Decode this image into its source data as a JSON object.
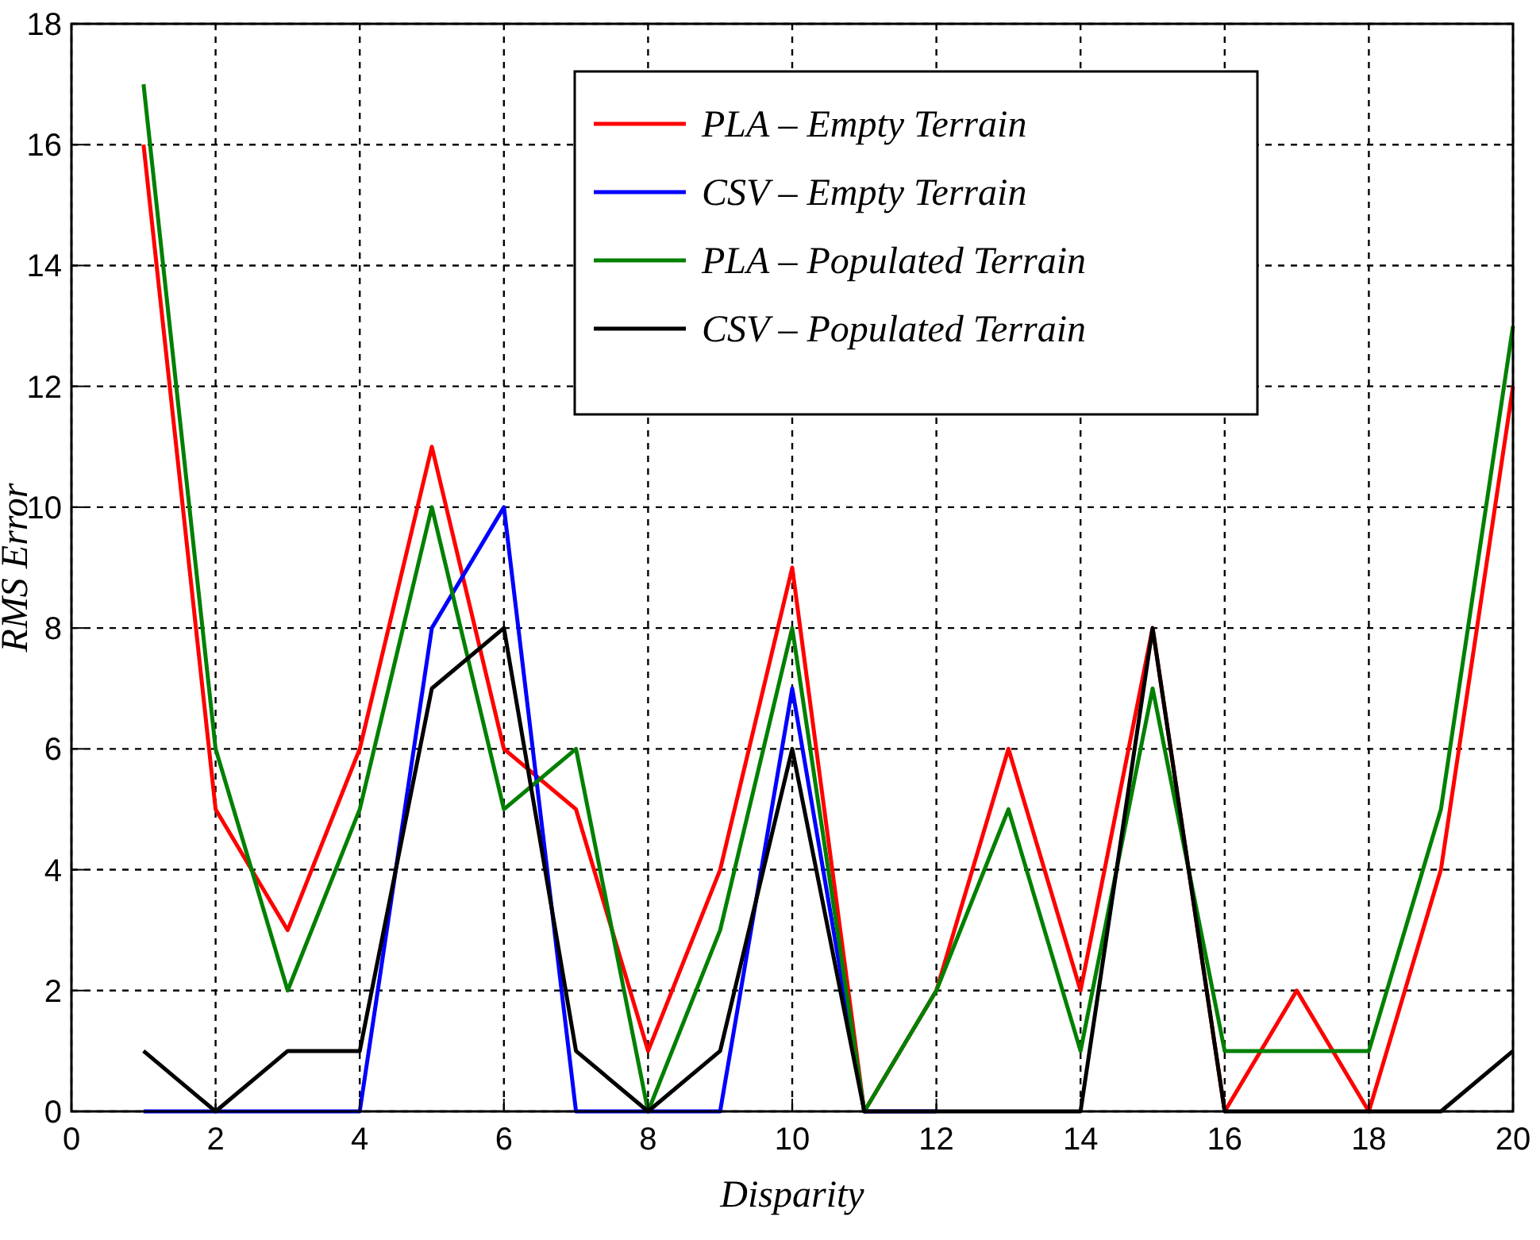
{
  "chart_data": {
    "type": "line",
    "xlabel": "Disparity",
    "ylabel": "RMS Error",
    "x": [
      1,
      2,
      3,
      4,
      5,
      6,
      7,
      8,
      9,
      10,
      11,
      12,
      13,
      14,
      15,
      16,
      17,
      18,
      19,
      20
    ],
    "xlim": [
      0,
      20
    ],
    "xticks": [
      0,
      2,
      4,
      6,
      8,
      10,
      12,
      14,
      16,
      18,
      20
    ],
    "ylim": [
      0,
      18
    ],
    "yticks": [
      0,
      2,
      4,
      6,
      8,
      10,
      12,
      14,
      16,
      18
    ],
    "grid": true,
    "legend": "top",
    "line_style": "solid",
    "marker": "none",
    "series": [
      {
        "name": "PLA – Empty Terrain",
        "color": "#ff0000",
        "values": [
          16,
          5,
          3,
          6,
          11,
          6,
          5,
          1,
          4,
          9,
          0,
          2,
          6,
          2,
          8,
          0,
          2,
          0,
          4,
          12
        ]
      },
      {
        "name": "CSV – Empty Terrain",
        "color": "#0000ff",
        "values": [
          0,
          0,
          0,
          0,
          8,
          10,
          0,
          0,
          0,
          7,
          0,
          0,
          null,
          null,
          null,
          null,
          null,
          null,
          null,
          null
        ]
      },
      {
        "name": "PLA – Populated Terrain",
        "color": "#008000",
        "values": [
          17,
          6,
          2,
          5,
          10,
          5,
          6,
          0,
          3,
          8,
          0,
          2,
          5,
          1,
          7,
          1,
          1,
          1,
          5,
          13
        ]
      },
      {
        "name": "CSV – Populated Terrain",
        "color": "#000000",
        "values": [
          1,
          0,
          1,
          1,
          7,
          8,
          1,
          0,
          1,
          6,
          0,
          0,
          0,
          0,
          8,
          0,
          0,
          0,
          0,
          1
        ]
      }
    ]
  }
}
